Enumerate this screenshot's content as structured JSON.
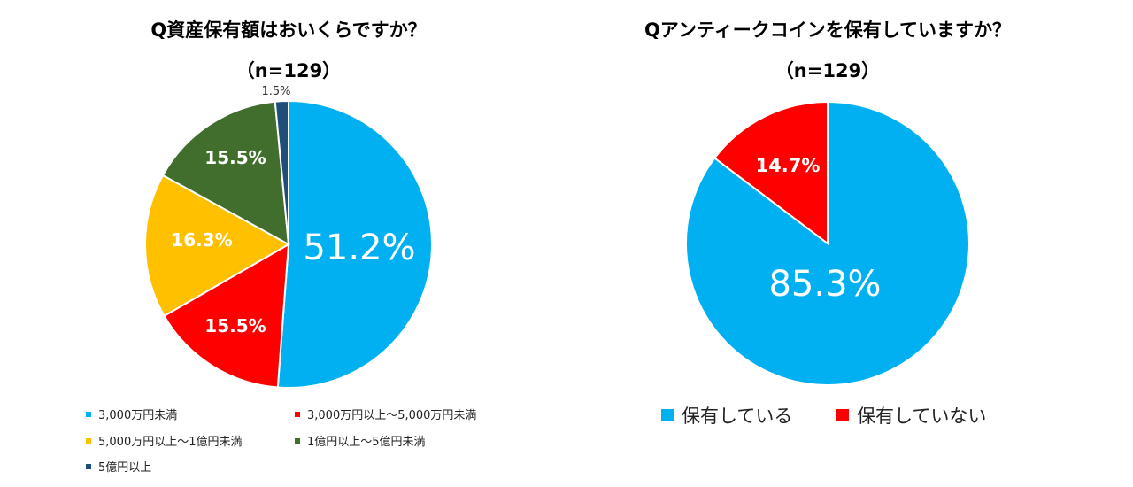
{
  "chart_data": [
    {
      "type": "pie",
      "title": "Q資産保有額はおいくらですか？",
      "n_label": "（n=129）",
      "categories": [
        "3,000万円未満",
        "3,000万円以上～5,000万円未満",
        "5,000万円以上～1億円未満",
        "1億円以上～5億円未満",
        "5億円以上"
      ],
      "values": [
        51.2,
        15.5,
        16.3,
        15.5,
        1.5
      ],
      "labels": [
        "51.2%",
        "15.5%",
        "16.3%",
        "15.5%",
        "1.5%"
      ],
      "colors": [
        "#00b0f0",
        "#ff0000",
        "#ffc000",
        "#426e2d",
        "#1f4e79"
      ],
      "legend": [
        "3,000万円未満",
        "3,000万円以上～5,000万円未満",
        "5,000万円以上～1億円未満",
        "1億円以上～5億円未満",
        "5億円以上"
      ]
    },
    {
      "type": "pie",
      "title": "Qアンティークコインを保有していますか？",
      "n_label": "（n=129）",
      "categories": [
        "保有している",
        "保有していない"
      ],
      "values": [
        85.3,
        14.7
      ],
      "labels": [
        "85.3%",
        "14.7%"
      ],
      "colors": [
        "#00b0f0",
        "#ff0000"
      ],
      "legend": [
        "保有している",
        "保有していない"
      ]
    }
  ]
}
